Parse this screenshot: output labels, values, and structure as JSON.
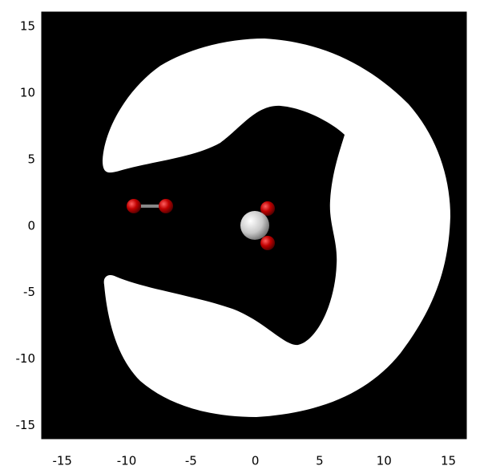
{
  "chart_data": {
    "type": "region",
    "xlim": [
      -16.6,
      16.4
    ],
    "ylim": [
      -16.0,
      16.1
    ],
    "xticks": [
      -15,
      -10,
      -5,
      0,
      5,
      10,
      15
    ],
    "yticks": [
      -15,
      -10,
      -5,
      0,
      5,
      10,
      15
    ]
  }
}
